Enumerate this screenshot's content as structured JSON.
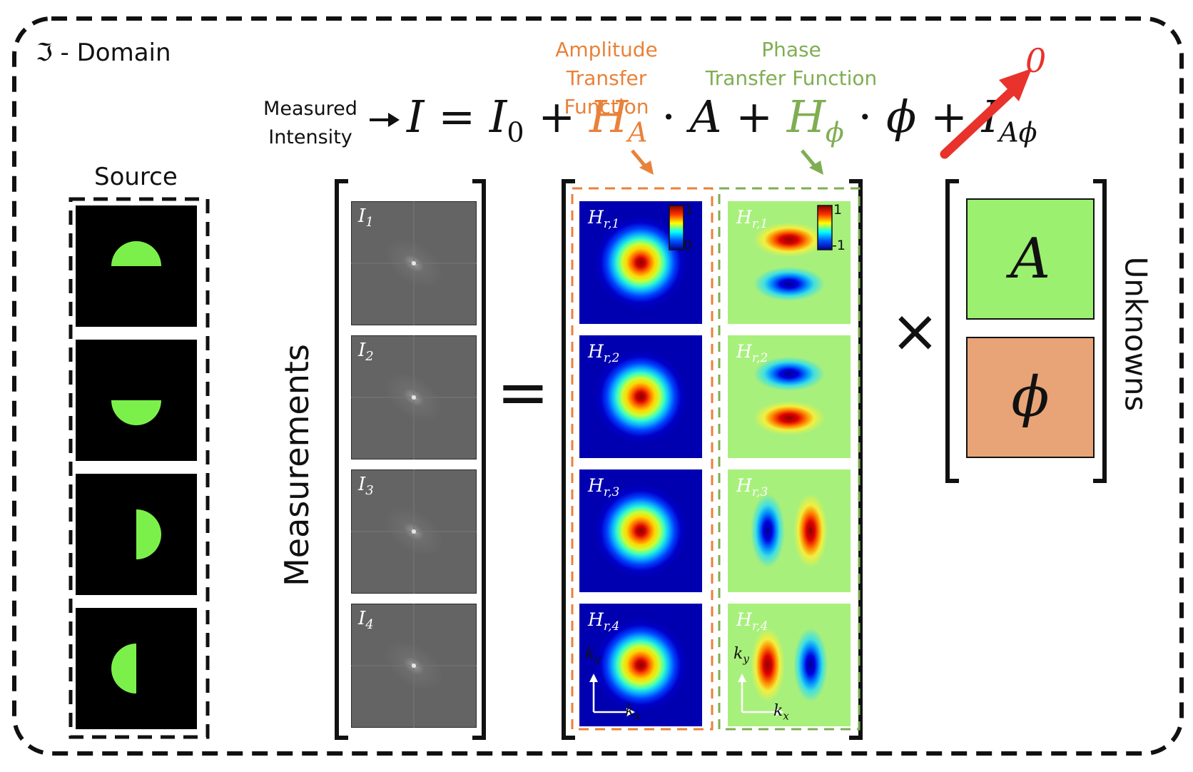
{
  "domain_title": "ℑ - Domain",
  "source": {
    "label": "Source",
    "orientations": [
      "top-half",
      "bottom-half",
      "right-half",
      "left-half"
    ],
    "pupil_color": "#7cf04a"
  },
  "measurements": {
    "axis_label": "Measurements",
    "items": [
      {
        "symbol": "I",
        "sub": "1"
      },
      {
        "symbol": "I",
        "sub": "2"
      },
      {
        "symbol": "I",
        "sub": "3"
      },
      {
        "symbol": "I",
        "sub": "4"
      }
    ]
  },
  "equation": {
    "measured_label_line1": "Measured",
    "measured_label_line2": "Intensity",
    "I": "I",
    "eq": "=",
    "I0": "I",
    "I0_sub": "0",
    "plus1": "+",
    "HA": "H",
    "HA_sub": "A",
    "dot1": "·",
    "A": "A",
    "plus2": "+",
    "Hphi": "H",
    "Hphi_sub": "ϕ",
    "dot2": "·",
    "phi": "ϕ",
    "plus3": "+",
    "IAphi": "I",
    "IAphi_sub": "Aϕ",
    "zero_label": "0"
  },
  "amplitude_tf": {
    "label_line1": "Amplitude",
    "label_line2": "Transfer Function",
    "color": "#e8823a",
    "colorbar_max": "1",
    "colorbar_min": "0",
    "panels": [
      {
        "symbol": "H",
        "sub": "r,1"
      },
      {
        "symbol": "H",
        "sub": "r,2"
      },
      {
        "symbol": "H",
        "sub": "r,3"
      },
      {
        "symbol": "H",
        "sub": "r,4"
      }
    ]
  },
  "phase_tf": {
    "label_line1": "Phase",
    "label_line2": "Transfer Function",
    "color": "#7fae52",
    "colorbar_max": "1",
    "colorbar_min": "-1",
    "panels": [
      {
        "symbol": "H",
        "sub": "r,1"
      },
      {
        "symbol": "H",
        "sub": "r,2"
      },
      {
        "symbol": "H",
        "sub": "r,3"
      },
      {
        "symbol": "H",
        "sub": "r,4"
      }
    ]
  },
  "axes": {
    "ky": "k",
    "ky_sub": "y",
    "kx": "k",
    "kx_sub": "x"
  },
  "operators": {
    "equals": "=",
    "times": "×"
  },
  "unknowns": {
    "label": "Unknowns",
    "A": "A",
    "phi": "ϕ",
    "A_color": "#9bf06f",
    "phi_color": "#e8a476"
  },
  "colors": {
    "zero_arrow": "#e8322b",
    "colormap": "jet"
  }
}
